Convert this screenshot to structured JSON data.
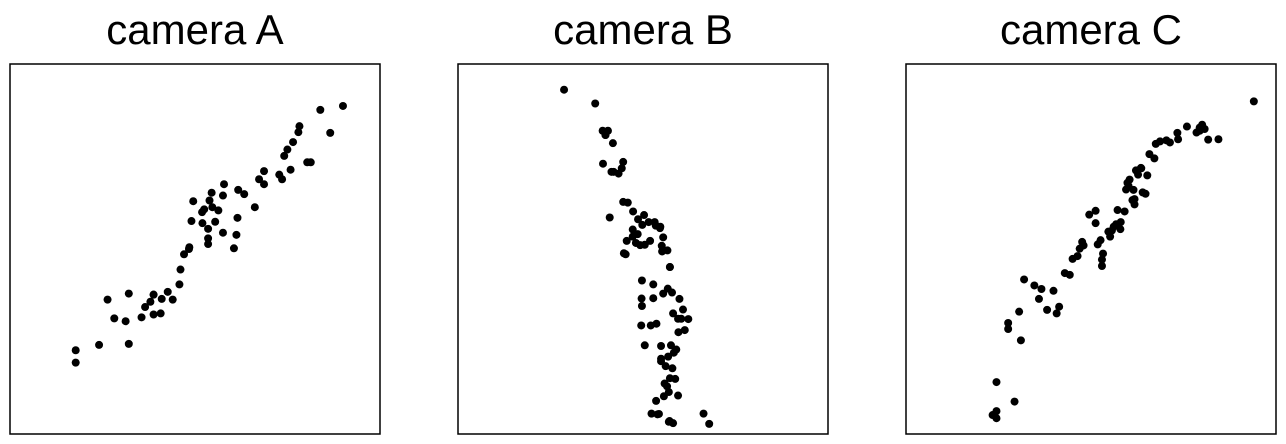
{
  "chart_data": [
    {
      "type": "scatter",
      "title": "camera A",
      "xlabel": "",
      "ylabel": "",
      "grid": false,
      "axes_ticks": false,
      "xlim": [
        0,
        100
      ],
      "ylim": [
        0,
        100
      ],
      "x": [
        16.3,
        16.3,
        22.9,
        25.3,
        27.2,
        30.4,
        31.3,
        31.3,
        34.9,
        35.9,
        37.4,
        38.3,
        38.3,
        38.3,
        40.3,
        40.6,
        42.3,
        43.7,
        45.6,
        45.9,
        46.9,
        48.3,
        48.4,
        49.0,
        49.5,
        52.0,
        52.1,
        52.6,
        53.7,
        53.7,
        53.7,
        54.1,
        54.7,
        54.9,
        55.7,
        56.6,
        57.9,
        57.9,
        58.2,
        61.0,
        61.7,
        62.0,
        62.2,
        63.9,
        66.9,
        68.1,
        69.5,
        69.5,
        73.8,
        74.6,
        75.2,
        76.1,
        77.0,
        77.7,
        79.2,
        79.5,
        81.7,
        82.7,
        85.4,
        88.2,
        91.8
      ],
      "y": [
        17.9,
        21.4,
        22.9,
        35.7,
        30.4,
        29.6,
        23.2,
        37.4,
        30.7,
        33.6,
        35.1,
        31.5,
        37.1,
        37.1,
        31.8,
        35.9,
        37.9,
        35.7,
        40.0,
        44.2,
        48.5,
        50.0,
        50.5,
        57.9,
        63.5,
        60.4,
        57.3,
        61.2,
        55.7,
        51.4,
        53.0,
        63.7,
        65.9,
        61.8,
        57.7,
        60.9,
        54.6,
        65.1,
        68.3,
        50.2,
        54.0,
        58.8,
        66.7,
        65.5,
        61.8,
        69.7,
        68.3,
        72.0,
        71.0,
        69.7,
        76.3,
        78.1,
        72.4,
        80.2,
        83.0,
        84.7,
        74.5,
        74.5,
        89.3,
        82.8,
        90.4
      ]
    },
    {
      "type": "scatter",
      "title": "camera B",
      "xlabel": "",
      "ylabel": "",
      "grid": false,
      "axes_ticks": false,
      "xlim": [
        0,
        100
      ],
      "ylim": [
        0,
        100
      ],
      "x": [
        27.7,
        36.5,
        38.6,
        40.1,
        39.4,
        39.4,
        41.5,
        44.4,
        38.7,
        41.1,
        41.7,
        43.1,
        44.0,
        44.4,
        45.7,
        47.2,
        48.6,
        49.8,
        50.3,
        51.6,
        53.6,
        54.8,
        40.6,
        44.6,
        45.1,
        45.4,
        47.1,
        48.0,
        47.1,
        48.5,
        49.2,
        50.5,
        52.0,
        53.3,
        54.9,
        55.7,
        55.3,
        55.4,
        56.9,
        57.6,
        57.6,
        49.7,
        52.9,
        55.7,
        49.6,
        52.9,
        57.0,
        58.2,
        59.9,
        60.8,
        61.3,
        60.3,
        60.0,
        61.8,
        49.7,
        49.5,
        52.2,
        53.8,
        58.5,
        62.8,
        50.5,
        55.1,
        57.9,
        58.7,
        59.4,
        55.1,
        57.1,
        56.4,
        55.1,
        58.3,
        59.1,
        57.6,
        56.1,
        56.8,
        57.3,
        59.9,
        53.7,
        55.9,
        52.4,
        54.1,
        54.5,
        57.3,
        58.5,
        57.5,
        67.1,
        68.7
      ],
      "y": [
        95.0,
        91.1,
        83.4,
        83.4,
        82.2,
        82.2,
        79.9,
        74.6,
        74.1,
        71.8,
        71.8,
        71.3,
        72.8,
        63.3,
        63.1,
        60.6,
        58.4,
        56.8,
        59.6,
        57.6,
        56.6,
        55.9,
        58.9,
        48.8,
        48.5,
        52.3,
        53.5,
        51.7,
        55.5,
        54.2,
        51.1,
        51.2,
        52.3,
        57.6,
        56.3,
        53.3,
        50.9,
        49.3,
        49.6,
        44.9,
        44.9,
        41.1,
        40.0,
        37.4,
        36.0,
        36.1,
        38.8,
        37.7,
        30.3,
        30.3,
        32.9,
        35.9,
        26.5,
        27.1,
        33.9,
        28.4,
        28.4,
        28.9,
        31.8,
        30.2,
        22.8,
        22.6,
        22.8,
        20.7,
        21.6,
        19.0,
        19.6,
        16.9,
        18.3,
        16.3,
        13.3,
        13.5,
        12.0,
        11.2,
        9.6,
        8.6,
        7.1,
        8.4,
        3.5,
        3.3,
        3.4,
        1.2,
        0.8,
        1.4,
        3.5,
        0.6
      ]
    },
    {
      "type": "scatter",
      "title": "camera C",
      "xlabel": "",
      "ylabel": "",
      "grid": false,
      "axes_ticks": false,
      "xlim": [
        0,
        100
      ],
      "ylim": [
        0,
        100
      ],
      "x": [
        22.2,
        23.3,
        23.3,
        23.3,
        28.4,
        31.1,
        26.6,
        26.6,
        29.7,
        30.2,
        34.0,
        35.3,
        36.0,
        37.6,
        39.4,
        40.3,
        41.0,
        42.6,
        44.0,
        44.8,
        46.2,
        46.8,
        47.5,
        47.9,
        49.5,
        51.3,
        51.3,
        51.9,
        52.7,
        53.1,
        53.4,
        53.1,
        54.9,
        55.4,
        55.9,
        56.4,
        57.1,
        57.5,
        58.4,
        58.3,
        59.5,
        59.9,
        60.3,
        60.6,
        60.9,
        61.7,
        62.0,
        62.3,
        62.3,
        62.7,
        63.3,
        64.1,
        64.2,
        64.6,
        65.4,
        65.9,
        66.5,
        67.9,
        68.3,
        69.5,
        71.3,
        72.3,
        74.6,
        74.4,
        77.1,
        79.8,
        80.7,
        80.7,
        81.4,
        82.1,
        83.1,
        86.0,
        96.0
      ],
      "y": [
        3.1,
        4.2,
        2.2,
        12.4,
        6.9,
        41.4,
        29.1,
        27.4,
        32.3,
        24.2,
        39.7,
        35.9,
        38.7,
        32.8,
        38.2,
        31.8,
        33.7,
        43.2,
        42.7,
        47.2,
        48.0,
        50.1,
        52.0,
        51.0,
        59.7,
        60.8,
        57.3,
        51.3,
        52.5,
        47.0,
        48.7,
        45.2,
        54.9,
        53.5,
        55.2,
        56.3,
        57.0,
        61.0,
        57.6,
        55.6,
        60.6,
        66.8,
        68.7,
        67.8,
        69.6,
        63.8,
        66.7,
        64.1,
        62.6,
        72.2,
        71.0,
        72.9,
        72.8,
        66.0,
        65.6,
        70.8,
        76.8,
        75.6,
        79.7,
        80.4,
        80.7,
        80.1,
        81.0,
        82.8,
        84.6,
        82.9,
        84.3,
        83.4,
        85.1,
        83.9,
        80.9,
        81.0,
        91.7
      ]
    }
  ]
}
